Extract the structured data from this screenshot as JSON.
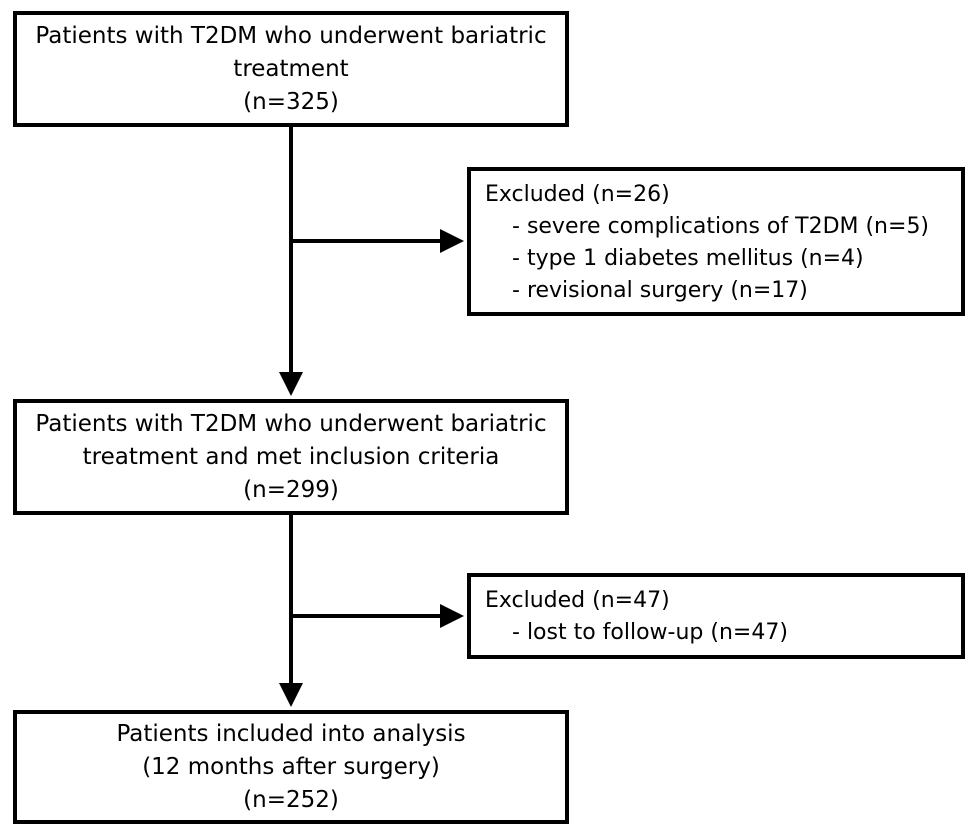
{
  "boxes": {
    "start": {
      "line1": "Patients with T2DM who underwent bariatric",
      "line2": "treatment",
      "count": "(n=325)"
    },
    "exclusion1": {
      "title": "Excluded (n=26)",
      "items": [
        "severe complications of T2DM (n=5)",
        "type 1 diabetes mellitus (n=4)",
        "revisional surgery (n=17)"
      ]
    },
    "eligible": {
      "line1": "Patients with T2DM who underwent bariatric",
      "line2": "treatment and met inclusion criteria",
      "count": "(n=299)"
    },
    "exclusion2": {
      "title": "Excluded (n=47)",
      "items": [
        "lost to follow-up (n=47)"
      ]
    },
    "final": {
      "line1": "Patients included into analysis",
      "line2": "(12 months after surgery)",
      "count": "(n=252)"
    }
  }
}
